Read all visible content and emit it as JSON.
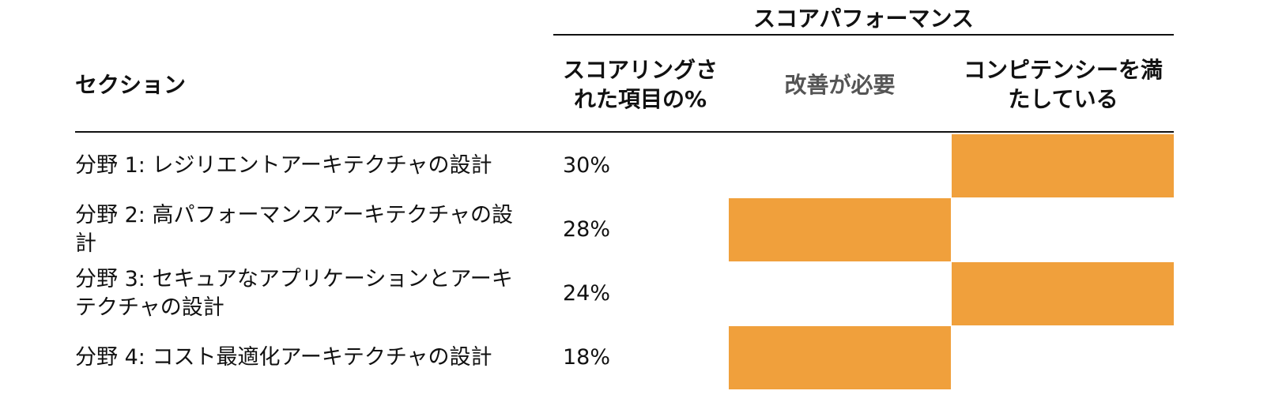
{
  "header": {
    "group_title": "スコアパフォーマンス",
    "columns": [
      "セクション",
      "スコアリングされた項目の%",
      "改善が必要",
      "コンピテンシーを満たしている"
    ]
  },
  "highlight_color": "#f0a03c",
  "table": {
    "rows": [
      {
        "section": "分野 1: レジリエントアーキテクチャの設計",
        "score": "30%",
        "needs_improvement": false,
        "meets_competency": true
      },
      {
        "section": "分野 2: 高パフォーマンスアーキテクチャの設計",
        "score": "28%",
        "needs_improvement": true,
        "meets_competency": false
      },
      {
        "section": "分野 3: セキュアなアプリケーションとアーキテクチャの設計",
        "score": "24%",
        "needs_improvement": false,
        "meets_competency": true
      },
      {
        "section": "分野 4: コスト最適化アーキテクチャの設計",
        "score": "18%",
        "needs_improvement": true,
        "meets_competency": false
      }
    ]
  }
}
